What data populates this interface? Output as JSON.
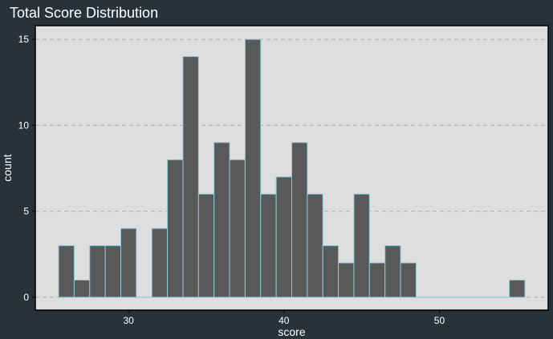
{
  "chart_data": {
    "type": "bar",
    "title": "Total Score Distribution",
    "xlabel": "score",
    "ylabel": "count",
    "x_tick_labels": [
      "30",
      "40",
      "50"
    ],
    "y_tick_labels": [
      "0",
      "5",
      "10",
      "15"
    ],
    "x_ticks": [
      30,
      40,
      50
    ],
    "y_ticks": [
      0,
      5,
      10,
      15
    ],
    "xlim": [
      24,
      57
    ],
    "ylim": [
      -0.75,
      15.8
    ],
    "bin_width": 1,
    "bins": [
      {
        "x": 26,
        "count": 3
      },
      {
        "x": 27,
        "count": 1
      },
      {
        "x": 28,
        "count": 3
      },
      {
        "x": 29,
        "count": 3
      },
      {
        "x": 30,
        "count": 4
      },
      {
        "x": 31,
        "count": 0
      },
      {
        "x": 32,
        "count": 4
      },
      {
        "x": 33,
        "count": 8
      },
      {
        "x": 34,
        "count": 14
      },
      {
        "x": 35,
        "count": 6
      },
      {
        "x": 36,
        "count": 9
      },
      {
        "x": 37,
        "count": 8
      },
      {
        "x": 38,
        "count": 15
      },
      {
        "x": 39,
        "count": 6
      },
      {
        "x": 40,
        "count": 7
      },
      {
        "x": 41,
        "count": 9
      },
      {
        "x": 42,
        "count": 6
      },
      {
        "x": 43,
        "count": 3
      },
      {
        "x": 44,
        "count": 2
      },
      {
        "x": 45,
        "count": 6
      },
      {
        "x": 46,
        "count": 2
      },
      {
        "x": 47,
        "count": 3
      },
      {
        "x": 48,
        "count": 2
      },
      {
        "x": 49,
        "count": 0
      },
      {
        "x": 50,
        "count": 0
      },
      {
        "x": 51,
        "count": 0
      },
      {
        "x": 52,
        "count": 0
      },
      {
        "x": 53,
        "count": 0
      },
      {
        "x": 54,
        "count": 0
      },
      {
        "x": 55,
        "count": 1
      }
    ],
    "grid": "horizontal-dashed",
    "colors": {
      "background": "#27323a",
      "panel": "#dedede",
      "bar_fill": "#595959",
      "bar_outline": "#8ec8d4",
      "grid": "#b0b0b0",
      "text": "#ffffff"
    }
  }
}
